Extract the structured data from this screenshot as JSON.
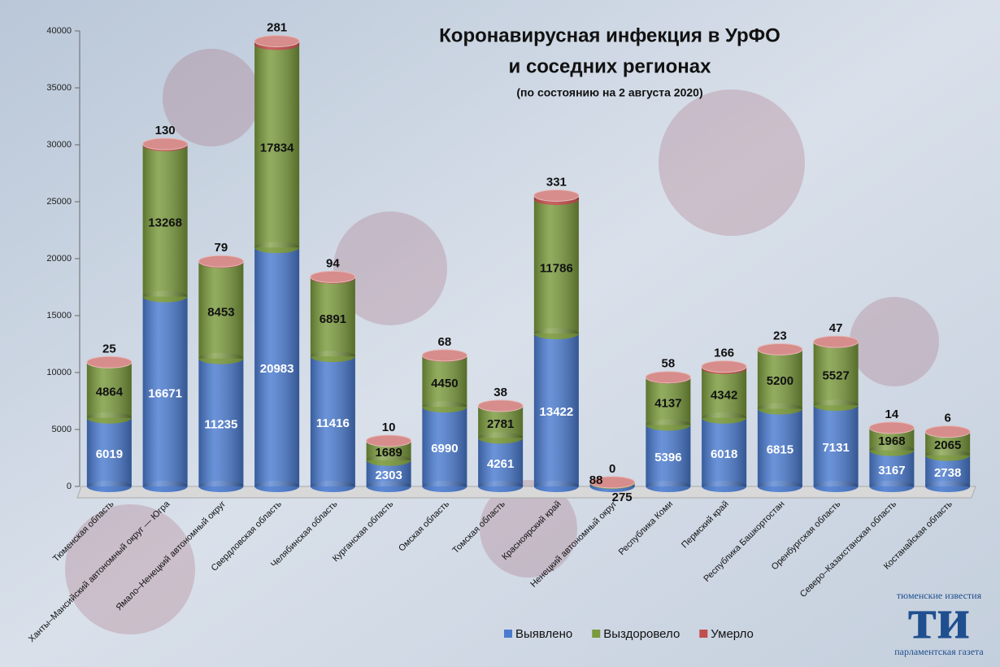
{
  "chart_data": {
    "type": "bar",
    "title": "Коронавирусная инфекция в УрФО",
    "title_line2": "и соседних регионах",
    "subtitle": "(по состоянию на 2 августа 2020)",
    "categories": [
      "Тюменская область",
      "Ханты–Мансийский автономный округ — Югра",
      "Ямало–Ненецкий автономный округ",
      "Свердловская область",
      "Челябинская область",
      "Курганская область",
      "Омская область",
      "Томская область",
      "Красноярский край",
      "Ненецкий автономный округ",
      "Республика Коми",
      "Пермский край",
      "Республика Башкортостан",
      "Оренбургская область",
      "Северо–Казахстанская область",
      "Костанайская область"
    ],
    "series": [
      {
        "name": "Выявлено",
        "color": "#4a7bd0",
        "values": [
          6019,
          16671,
          11235,
          20983,
          11416,
          2303,
          6990,
          4261,
          13422,
          275,
          5396,
          6018,
          6815,
          7131,
          3167,
          2738
        ]
      },
      {
        "name": "Выздоровело",
        "color": "#7a9a3c",
        "values": [
          4864,
          13268,
          8453,
          17834,
          6891,
          1689,
          4450,
          2781,
          11786,
          88,
          4137,
          4342,
          5200,
          5527,
          1968,
          2065
        ]
      },
      {
        "name": "Умерло",
        "color": "#c0504d",
        "values": [
          25,
          130,
          79,
          281,
          94,
          10,
          68,
          38,
          331,
          0,
          58,
          166,
          23,
          47,
          14,
          6
        ]
      }
    ],
    "stacked": true,
    "ylim": [
      0,
      40000
    ],
    "yticks": [
      0,
      5000,
      10000,
      15000,
      20000,
      25000,
      30000,
      35000,
      40000
    ],
    "legend": "bottom"
  },
  "logo": {
    "top": "тюменские известия",
    "mark": "ти",
    "bottom": "парламентская газета"
  }
}
